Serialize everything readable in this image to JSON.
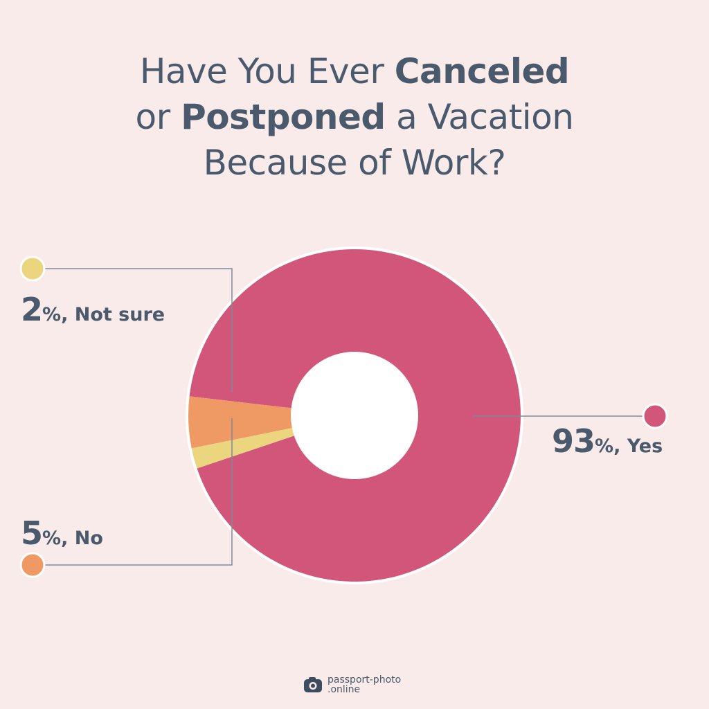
{
  "title": {
    "line1_a": "Have You Ever ",
    "line1_b": "Canceled",
    "line2_a": "or ",
    "line2_b": "Postponed",
    "line2_c": " a Vacation",
    "line3": "Because of Work?"
  },
  "chart_data": {
    "type": "pie",
    "variant": "donut",
    "categories": [
      "Yes",
      "No",
      "Not sure"
    ],
    "values": [
      93,
      5,
      2
    ],
    "labels": [
      {
        "value": "93",
        "suffix": "%, Yes"
      },
      {
        "value": "5",
        "suffix": "%, No"
      },
      {
        "value": "2",
        "suffix": "%, Not sure"
      }
    ],
    "colors": [
      "#d2567a",
      "#ef9a64",
      "#ecd57f"
    ],
    "legend": "callouts"
  },
  "colors": {
    "background": "#f9ebea",
    "text": "#4a5a6c",
    "leader_line": "#7e8a99"
  },
  "brand": {
    "line1": "passport-photo",
    "line2": ".online",
    "icon": "camera-icon"
  }
}
